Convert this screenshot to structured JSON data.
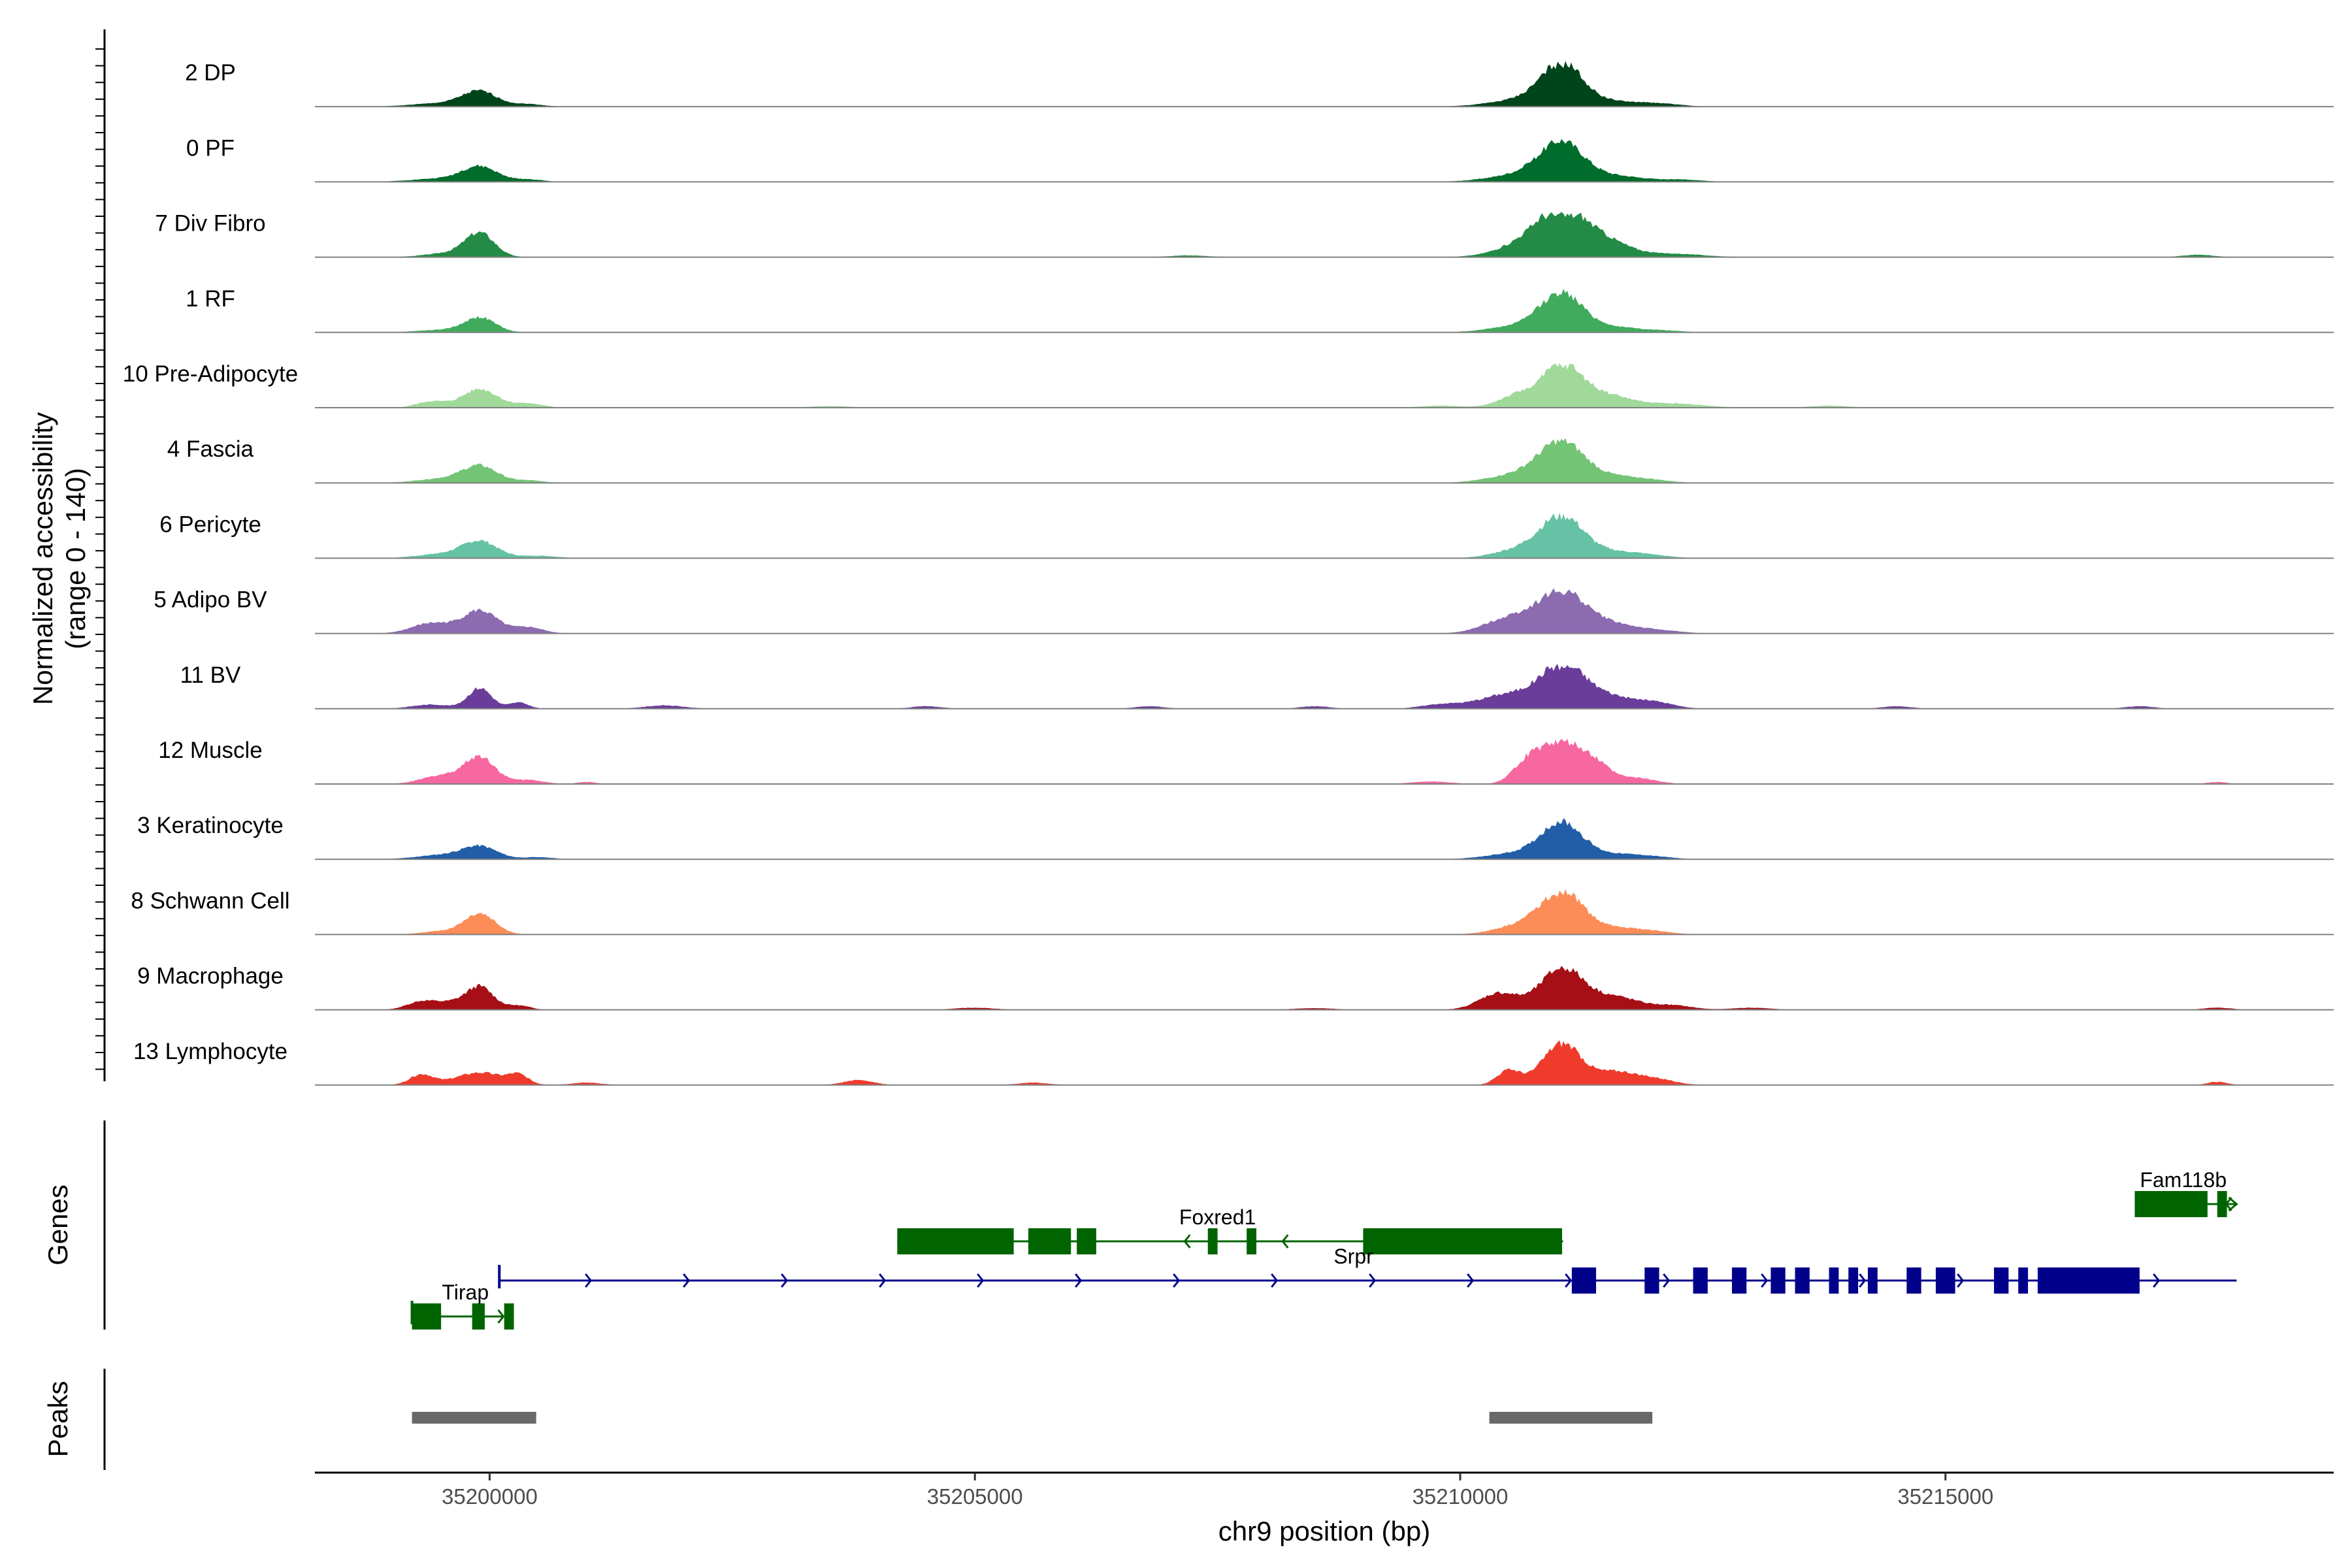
{
  "chart_data": {
    "type": "area",
    "title": "",
    "chromosome": "chr9",
    "xlabel": "chr9 position (bp)",
    "ylabel": "Normalized accessibility",
    "ylabel_range": "(range 0 - 140)",
    "xlim": [
      35198200,
      35219000
    ],
    "xticks": [
      35200000,
      35205000,
      35210000,
      35215000
    ],
    "xtick_labels": [
      "35200000",
      "35205000",
      "35210000",
      "35215000"
    ],
    "ylim": [
      0,
      140
    ],
    "grid": false,
    "tracks": [
      {
        "name": "2 DP",
        "color": "#00441b",
        "peaks": [
          [
            35199900,
            0.35,
            180
          ],
          [
            35199500,
            0.08,
            300
          ],
          [
            35200400,
            0.06,
            150
          ],
          [
            35211050,
            0.95,
            210
          ],
          [
            35210700,
            0.18,
            350
          ],
          [
            35211600,
            0.12,
            300
          ],
          [
            35212100,
            0.05,
            200
          ]
        ]
      },
      {
        "name": "0 PF",
        "color": "#006d2c",
        "peaks": [
          [
            35199900,
            0.35,
            180
          ],
          [
            35199500,
            0.08,
            300
          ],
          [
            35200400,
            0.06,
            150
          ],
          [
            35211050,
            0.85,
            220
          ],
          [
            35210700,
            0.2,
            350
          ],
          [
            35211600,
            0.14,
            300
          ],
          [
            35212300,
            0.05,
            200
          ]
        ]
      },
      {
        "name": "7 Div Fibro",
        "color": "#238b45",
        "peaks": [
          [
            35199900,
            0.55,
            150
          ],
          [
            35199600,
            0.1,
            250
          ],
          [
            35211050,
            1.0,
            250
          ],
          [
            35210700,
            0.3,
            300
          ],
          [
            35211500,
            0.35,
            250
          ],
          [
            35212200,
            0.08,
            300
          ],
          [
            35207200,
            0.04,
            200
          ],
          [
            35217600,
            0.06,
            150
          ]
        ]
      },
      {
        "name": "1 RF",
        "color": "#41ab5d",
        "peaks": [
          [
            35199900,
            0.35,
            160
          ],
          [
            35199500,
            0.06,
            250
          ],
          [
            35211050,
            0.9,
            220
          ],
          [
            35210600,
            0.15,
            300
          ],
          [
            35211600,
            0.12,
            250
          ],
          [
            35212100,
            0.04,
            200
          ]
        ]
      },
      {
        "name": "10 Pre-Adipocyte",
        "color": "#a1d99b",
        "peaks": [
          [
            35199900,
            0.45,
            180
          ],
          [
            35199400,
            0.15,
            150
          ],
          [
            35200400,
            0.1,
            150
          ],
          [
            35211050,
            1.0,
            200
          ],
          [
            35210600,
            0.3,
            200
          ],
          [
            35211500,
            0.3,
            250
          ],
          [
            35212200,
            0.1,
            300
          ],
          [
            35203500,
            0.04,
            200
          ],
          [
            35209800,
            0.05,
            200
          ],
          [
            35213800,
            0.05,
            200
          ]
        ]
      },
      {
        "name": "4 Fascia",
        "color": "#74c476",
        "peaks": [
          [
            35199900,
            0.4,
            180
          ],
          [
            35199500,
            0.1,
            250
          ],
          [
            35200400,
            0.06,
            150
          ],
          [
            35211050,
            0.95,
            230
          ],
          [
            35210600,
            0.2,
            300
          ],
          [
            35211600,
            0.15,
            250
          ],
          [
            35212000,
            0.05,
            200
          ]
        ]
      },
      {
        "name": "6 Pericyte",
        "color": "#66c2a4",
        "peaks": [
          [
            35199900,
            0.4,
            180
          ],
          [
            35199500,
            0.1,
            250
          ],
          [
            35200500,
            0.06,
            200
          ],
          [
            35211050,
            1.0,
            220
          ],
          [
            35210600,
            0.2,
            250
          ],
          [
            35211600,
            0.15,
            250
          ],
          [
            35212000,
            0.05,
            200
          ]
        ]
      },
      {
        "name": "5 Adipo BV",
        "color": "#8c6bb1",
        "peaks": [
          [
            35199900,
            0.55,
            180
          ],
          [
            35199400,
            0.25,
            200
          ],
          [
            35200400,
            0.15,
            150
          ],
          [
            35211050,
            1.0,
            250
          ],
          [
            35210500,
            0.35,
            250
          ],
          [
            35211600,
            0.2,
            250
          ],
          [
            35212100,
            0.06,
            200
          ]
        ]
      },
      {
        "name": "11 BV",
        "color": "#6a3d9a",
        "peaks": [
          [
            35199900,
            0.5,
            120
          ],
          [
            35199400,
            0.1,
            200
          ],
          [
            35200300,
            0.15,
            100
          ],
          [
            35211050,
            1.0,
            220
          ],
          [
            35210500,
            0.35,
            300
          ],
          [
            35211500,
            0.3,
            250
          ],
          [
            35212000,
            0.15,
            200
          ],
          [
            35209800,
            0.1,
            200
          ],
          [
            35206800,
            0.06,
            150
          ],
          [
            35201800,
            0.08,
            200
          ],
          [
            35204500,
            0.06,
            150
          ],
          [
            35214500,
            0.06,
            150
          ],
          [
            35217000,
            0.06,
            150
          ],
          [
            35208500,
            0.06,
            150
          ]
        ]
      },
      {
        "name": "12 Muscle",
        "color": "#f768a1",
        "peaks": [
          [
            35199900,
            0.65,
            160
          ],
          [
            35199500,
            0.2,
            200
          ],
          [
            35200400,
            0.1,
            150
          ],
          [
            35211050,
            1.0,
            200
          ],
          [
            35210700,
            0.5,
            150
          ],
          [
            35211400,
            0.4,
            150
          ],
          [
            35211800,
            0.15,
            200
          ],
          [
            35209700,
            0.06,
            200
          ],
          [
            35201000,
            0.05,
            100
          ],
          [
            35217800,
            0.05,
            100
          ]
        ]
      },
      {
        "name": "3 Keratinocyte",
        "color": "#225ea8",
        "peaks": [
          [
            35199900,
            0.3,
            180
          ],
          [
            35199500,
            0.1,
            250
          ],
          [
            35200500,
            0.05,
            150
          ],
          [
            35211050,
            0.85,
            210
          ],
          [
            35210600,
            0.15,
            300
          ],
          [
            35211600,
            0.12,
            250
          ],
          [
            35212000,
            0.05,
            200
          ]
        ]
      },
      {
        "name": "8 Schwann Cell",
        "color": "#fc8d59",
        "peaks": [
          [
            35199900,
            0.5,
            160
          ],
          [
            35199500,
            0.08,
            200
          ],
          [
            35211050,
            1.0,
            220
          ],
          [
            35210600,
            0.2,
            250
          ],
          [
            35211600,
            0.15,
            250
          ],
          [
            35212000,
            0.06,
            200
          ]
        ]
      },
      {
        "name": "9 Macrophage",
        "color": "#a50f15",
        "peaks": [
          [
            35199900,
            0.55,
            140
          ],
          [
            35199300,
            0.2,
            150
          ],
          [
            35199600,
            0.15,
            150
          ],
          [
            35200300,
            0.1,
            120
          ],
          [
            35211050,
            1.0,
            220
          ],
          [
            35210400,
            0.4,
            200
          ],
          [
            35211600,
            0.3,
            250
          ],
          [
            35212200,
            0.1,
            200
          ],
          [
            35205000,
            0.05,
            200
          ],
          [
            35208500,
            0.04,
            200
          ],
          [
            35213000,
            0.05,
            200
          ],
          [
            35217800,
            0.05,
            150
          ]
        ]
      },
      {
        "name": "13 Lymphocyte",
        "color": "#ef3b2c",
        "peaks": [
          [
            35199900,
            0.3,
            250
          ],
          [
            35199300,
            0.25,
            120
          ],
          [
            35200300,
            0.2,
            100
          ],
          [
            35211050,
            1.0,
            200
          ],
          [
            35210500,
            0.35,
            120
          ],
          [
            35211600,
            0.3,
            200
          ],
          [
            35212000,
            0.15,
            200
          ],
          [
            35203800,
            0.12,
            150
          ],
          [
            35201000,
            0.06,
            150
          ],
          [
            35205600,
            0.06,
            150
          ],
          [
            35217800,
            0.08,
            100
          ]
        ]
      }
    ],
    "genes_label": "Genes",
    "genes": [
      {
        "name": "Tirap",
        "strand": "+",
        "color": "#006400",
        "start": 35199200,
        "end": 35200250,
        "exons": [
          [
            35199200,
            35199500
          ],
          [
            35199820,
            35199950
          ],
          [
            35200150,
            35200250
          ]
        ],
        "label_at": 35199750,
        "row": "low"
      },
      {
        "name": "Foxred1",
        "strand": "-",
        "color": "#006400",
        "start": 35204200,
        "end": 35211050,
        "exons": [
          [
            35204200,
            35205400
          ],
          [
            35205550,
            35205990
          ],
          [
            35206050,
            35206250
          ],
          [
            35207400,
            35207500
          ],
          [
            35207800,
            35207900
          ],
          [
            35209000,
            35211050
          ]
        ],
        "label_at": 35207500,
        "row": "high"
      },
      {
        "name": "Srpr",
        "strand": "+",
        "color": "#00008b",
        "start": 35200100,
        "end": 35218000,
        "exons": [
          [
            35211150,
            35211400
          ],
          [
            35211900,
            35212050
          ],
          [
            35212400,
            35212550
          ],
          [
            35212800,
            35212950
          ],
          [
            35213200,
            35213350
          ],
          [
            35213450,
            35213600
          ],
          [
            35213800,
            35213900
          ],
          [
            35214000,
            35214100
          ],
          [
            35214200,
            35214300
          ],
          [
            35214600,
            35214750
          ],
          [
            35214900,
            35215100
          ],
          [
            35215500,
            35215650
          ],
          [
            35215750,
            35215850
          ],
          [
            35215950,
            35217000
          ]
        ],
        "label_at": 35208900,
        "row": "mid"
      },
      {
        "name": "Fam118b",
        "strand": "-",
        "color": "#006400",
        "start": 35216950,
        "end": 35218000,
        "exons": [
          [
            35216950,
            35217700
          ],
          [
            35217800,
            35217900
          ]
        ],
        "label_at": 35217450,
        "row": "high2"
      }
    ],
    "peaks_label": "Peaks",
    "peak_regions": [
      [
        35199200,
        35200480
      ],
      [
        35210300,
        35211980
      ]
    ],
    "peak_color": "#696969"
  }
}
